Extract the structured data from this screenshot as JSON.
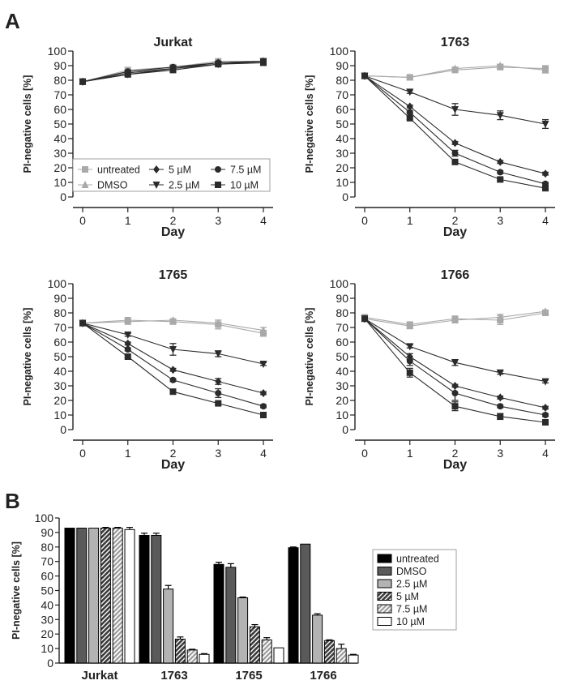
{
  "panel_labels": [
    "A",
    "B"
  ],
  "series_colors": {
    "untreated": "#a9a9a9",
    "DMSO": "#a9a9a9",
    "drug": "#2b2b2b"
  },
  "chart_data": [
    {
      "type": "line",
      "title": "Jurkat",
      "xlabel": "Day",
      "ylabel": "PI-negative cells [%]",
      "x": [
        0,
        1,
        2,
        3,
        4
      ],
      "ylim": [
        0,
        100
      ],
      "yticks": [
        0,
        10,
        20,
        30,
        40,
        50,
        60,
        70,
        80,
        90,
        100
      ],
      "legend": true,
      "legend_position": "lower-center",
      "series": [
        {
          "name": "untreated",
          "marker": "square",
          "color": "#a9a9a9",
          "values": [
            79,
            87,
            89,
            93,
            93
          ],
          "err": [
            0,
            0,
            0,
            0,
            0
          ]
        },
        {
          "name": "DMSO",
          "marker": "triangle-up",
          "color": "#a9a9a9",
          "values": [
            79,
            86,
            88,
            92,
            92
          ],
          "err": [
            0,
            0,
            0,
            0,
            0
          ]
        },
        {
          "name": "2.5 µM",
          "marker": "triangle-down",
          "color": "#2b2b2b",
          "values": [
            79,
            84,
            88,
            91,
            93
          ],
          "err": [
            0,
            1,
            1,
            1,
            1
          ]
        },
        {
          "name": "5 µM",
          "marker": "diamond",
          "color": "#2b2b2b",
          "values": [
            79,
            85,
            88,
            92,
            93
          ],
          "err": [
            0,
            1,
            1,
            1,
            1
          ]
        },
        {
          "name": "7.5 µM",
          "marker": "circle",
          "color": "#2b2b2b",
          "values": [
            79,
            86,
            89,
            92,
            93
          ],
          "err": [
            0,
            1,
            1,
            1,
            1
          ]
        },
        {
          "name": "10 µM",
          "marker": "square",
          "color": "#2b2b2b",
          "values": [
            79,
            84,
            87,
            91,
            92
          ],
          "err": [
            0,
            1,
            1,
            1,
            1
          ]
        }
      ]
    },
    {
      "type": "line",
      "title": "1763",
      "xlabel": "Day",
      "ylabel": "PI-negative cells [%]",
      "x": [
        0,
        1,
        2,
        3,
        4
      ],
      "ylim": [
        0,
        100
      ],
      "yticks": [
        0,
        10,
        20,
        30,
        40,
        50,
        60,
        70,
        80,
        90,
        100
      ],
      "legend": false,
      "series": [
        {
          "name": "untreated",
          "marker": "square",
          "color": "#a9a9a9",
          "values": [
            83,
            82,
            87,
            89,
            88
          ],
          "err": [
            0,
            1,
            1,
            1,
            2
          ]
        },
        {
          "name": "DMSO",
          "marker": "triangle-up",
          "color": "#a9a9a9",
          "values": [
            83,
            82,
            88,
            90,
            87
          ],
          "err": [
            0,
            1,
            1,
            1,
            2
          ]
        },
        {
          "name": "2.5 µM",
          "marker": "triangle-down",
          "color": "#2b2b2b",
          "values": [
            83,
            72,
            60,
            56,
            50
          ],
          "err": [
            0,
            1,
            4,
            3,
            3
          ]
        },
        {
          "name": "5 µM",
          "marker": "diamond",
          "color": "#2b2b2b",
          "values": [
            83,
            62,
            37,
            24,
            16
          ],
          "err": [
            0,
            1,
            1,
            1,
            1
          ]
        },
        {
          "name": "7.5 µM",
          "marker": "circle",
          "color": "#2b2b2b",
          "values": [
            83,
            58,
            30,
            17,
            9
          ],
          "err": [
            0,
            1,
            2,
            1,
            1
          ]
        },
        {
          "name": "10 µM",
          "marker": "square",
          "color": "#2b2b2b",
          "values": [
            83,
            54,
            24,
            12,
            6
          ],
          "err": [
            0,
            1,
            1,
            1,
            1
          ]
        }
      ]
    },
    {
      "type": "line",
      "title": "1765",
      "xlabel": "Day",
      "ylabel": "PI-negative cells [%]",
      "x": [
        0,
        1,
        2,
        3,
        4
      ],
      "ylim": [
        0,
        100
      ],
      "yticks": [
        0,
        10,
        20,
        30,
        40,
        50,
        60,
        70,
        80,
        90,
        100
      ],
      "legend": false,
      "series": [
        {
          "name": "untreated",
          "marker": "square",
          "color": "#a9a9a9",
          "values": [
            73,
            75,
            74,
            72,
            66
          ],
          "err": [
            0,
            1,
            1,
            3,
            2
          ]
        },
        {
          "name": "DMSO",
          "marker": "triangle-up",
          "color": "#a9a9a9",
          "values": [
            73,
            74,
            75,
            73,
            68
          ],
          "err": [
            0,
            1,
            1,
            2,
            2
          ]
        },
        {
          "name": "2.5 µM",
          "marker": "triangle-down",
          "color": "#2b2b2b",
          "values": [
            73,
            65,
            55,
            52,
            45
          ],
          "err": [
            0,
            1,
            4,
            2,
            1
          ]
        },
        {
          "name": "5 µM",
          "marker": "diamond",
          "color": "#2b2b2b",
          "values": [
            73,
            59,
            41,
            33,
            25
          ],
          "err": [
            0,
            1,
            1,
            2,
            1
          ]
        },
        {
          "name": "7.5 µM",
          "marker": "circle",
          "color": "#2b2b2b",
          "values": [
            73,
            55,
            34,
            25,
            16
          ],
          "err": [
            0,
            1,
            1,
            3,
            1
          ]
        },
        {
          "name": "10 µM",
          "marker": "square",
          "color": "#2b2b2b",
          "values": [
            73,
            50,
            26,
            18,
            10
          ],
          "err": [
            0,
            1,
            1,
            1,
            1
          ]
        }
      ]
    },
    {
      "type": "line",
      "title": "1766",
      "xlabel": "Day",
      "ylabel": "PI-negative cells [%]",
      "x": [
        0,
        1,
        2,
        3,
        4
      ],
      "ylim": [
        0,
        100
      ],
      "yticks": [
        0,
        10,
        20,
        30,
        40,
        50,
        60,
        70,
        80,
        90,
        100
      ],
      "legend": false,
      "series": [
        {
          "name": "untreated",
          "marker": "square",
          "color": "#a9a9a9",
          "values": [
            77,
            72,
            76,
            75,
            80
          ],
          "err": [
            1,
            1,
            1,
            3,
            1
          ]
        },
        {
          "name": "DMSO",
          "marker": "triangle-up",
          "color": "#a9a9a9",
          "values": [
            76,
            71,
            75,
            77,
            81
          ],
          "err": [
            1,
            1,
            1,
            2,
            1
          ]
        },
        {
          "name": "2.5 µM",
          "marker": "triangle-down",
          "color": "#2b2b2b",
          "values": [
            76,
            57,
            46,
            39,
            33
          ],
          "err": [
            1,
            1,
            2,
            1,
            1
          ]
        },
        {
          "name": "5 µM",
          "marker": "diamond",
          "color": "#2b2b2b",
          "values": [
            76,
            50,
            30,
            22,
            15
          ],
          "err": [
            1,
            2,
            1,
            1,
            1
          ]
        },
        {
          "name": "7.5 µM",
          "marker": "circle",
          "color": "#2b2b2b",
          "values": [
            76,
            47,
            25,
            16,
            10
          ],
          "err": [
            1,
            3,
            5,
            1,
            1
          ]
        },
        {
          "name": "10 µM",
          "marker": "square",
          "color": "#2b2b2b",
          "values": [
            76,
            39,
            16,
            9,
            5
          ],
          "err": [
            1,
            3,
            3,
            2,
            1
          ]
        }
      ]
    },
    {
      "type": "bar",
      "title": "",
      "xlabel": "",
      "ylabel": "PI-negative cells [%]",
      "categories": [
        "Jurkat",
        "1763",
        "1765",
        "1766"
      ],
      "ylim": [
        0,
        100
      ],
      "yticks": [
        0,
        10,
        20,
        30,
        40,
        50,
        60,
        70,
        80,
        90,
        100
      ],
      "legend": true,
      "legend_position": "right",
      "series": [
        {
          "name": "untreated",
          "fill": "#000000",
          "pattern": "solid",
          "values": [
            93,
            88,
            68,
            79.5
          ],
          "err": [
            0,
            1.5,
            1.5,
            0.5
          ]
        },
        {
          "name": "DMSO",
          "fill": "#5a5a5a",
          "pattern": "solid",
          "values": [
            93,
            88,
            66,
            82
          ],
          "err": [
            0,
            1.5,
            2.5,
            0
          ]
        },
        {
          "name": "2.5 µM",
          "fill": "#b3b3b3",
          "pattern": "solid",
          "values": [
            93,
            51,
            45,
            33
          ],
          "err": [
            0,
            2.5,
            0.5,
            1
          ]
        },
        {
          "name": "5 µM",
          "fill": "#3a3a3a",
          "pattern": "hatch",
          "values": [
            93,
            16.5,
            25,
            15.5
          ],
          "err": [
            0.5,
            1.5,
            1.5,
            0.5
          ]
        },
        {
          "name": "7.5 µM",
          "fill": "#b8b8b8",
          "pattern": "hatch",
          "values": [
            93,
            9,
            16,
            10
          ],
          "err": [
            0.5,
            0.5,
            1.5,
            3
          ]
        },
        {
          "name": "10 µM",
          "fill": "#ffffff",
          "pattern": "solid",
          "values": [
            92,
            6,
            10.5,
            5.5
          ],
          "err": [
            1.5,
            0.5,
            0,
            0.5
          ]
        }
      ]
    }
  ]
}
